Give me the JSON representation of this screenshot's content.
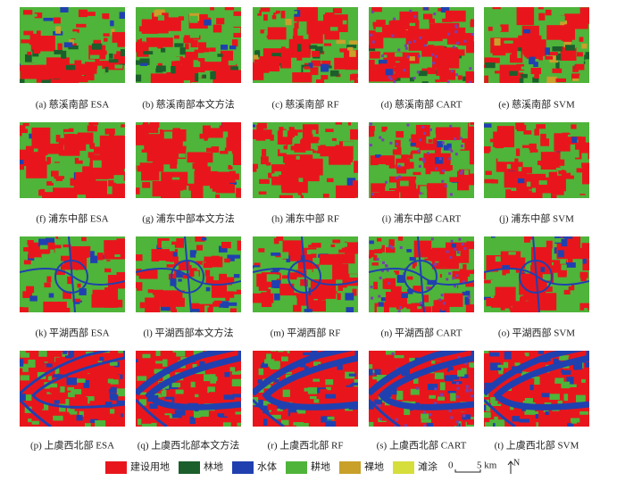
{
  "figure": {
    "panels": [
      {
        "caption": "(a) 慈溪南部 ESA"
      },
      {
        "caption": "(b) 慈溪南部本文方法"
      },
      {
        "caption": "(c) 慈溪南部 RF"
      },
      {
        "caption": "(d) 慈溪南部 CART"
      },
      {
        "caption": "(e) 慈溪南部 SVM"
      },
      {
        "caption": "(f) 浦东中部 ESA"
      },
      {
        "caption": "(g) 浦东中部本文方法"
      },
      {
        "caption": "(h) 浦东中部 RF"
      },
      {
        "caption": "(i) 浦东中部 CART"
      },
      {
        "caption": "(j) 浦东中部 SVM"
      },
      {
        "caption": "(k) 平湖西部 ESA"
      },
      {
        "caption": "(l) 平湖西部本文方法"
      },
      {
        "caption": "(m) 平湖西部 RF"
      },
      {
        "caption": "(n) 平湖西部 CART"
      },
      {
        "caption": "(o) 平湖西部 SVM"
      },
      {
        "caption": "(p) 上虞西北部 ESA"
      },
      {
        "caption": "(q) 上虞西北部本文方法"
      },
      {
        "caption": "(r) 上虞西北部 RF"
      },
      {
        "caption": "(s) 上虞西北部 CART"
      },
      {
        "caption": "(t) 上虞西北部 SVM"
      }
    ],
    "legend": [
      {
        "label": "建设用地",
        "color": "#e8161c"
      },
      {
        "label": "林地",
        "color": "#1c5e2c"
      },
      {
        "label": "水体",
        "color": "#2040b0"
      },
      {
        "label": "耕地",
        "color": "#4fb43a"
      },
      {
        "label": "裸地",
        "color": "#c8a02a"
      },
      {
        "label": "滩涂",
        "color": "#d6de3c"
      }
    ],
    "scale_bar": {
      "start": "0",
      "end": "5 km"
    },
    "north": "N"
  }
}
